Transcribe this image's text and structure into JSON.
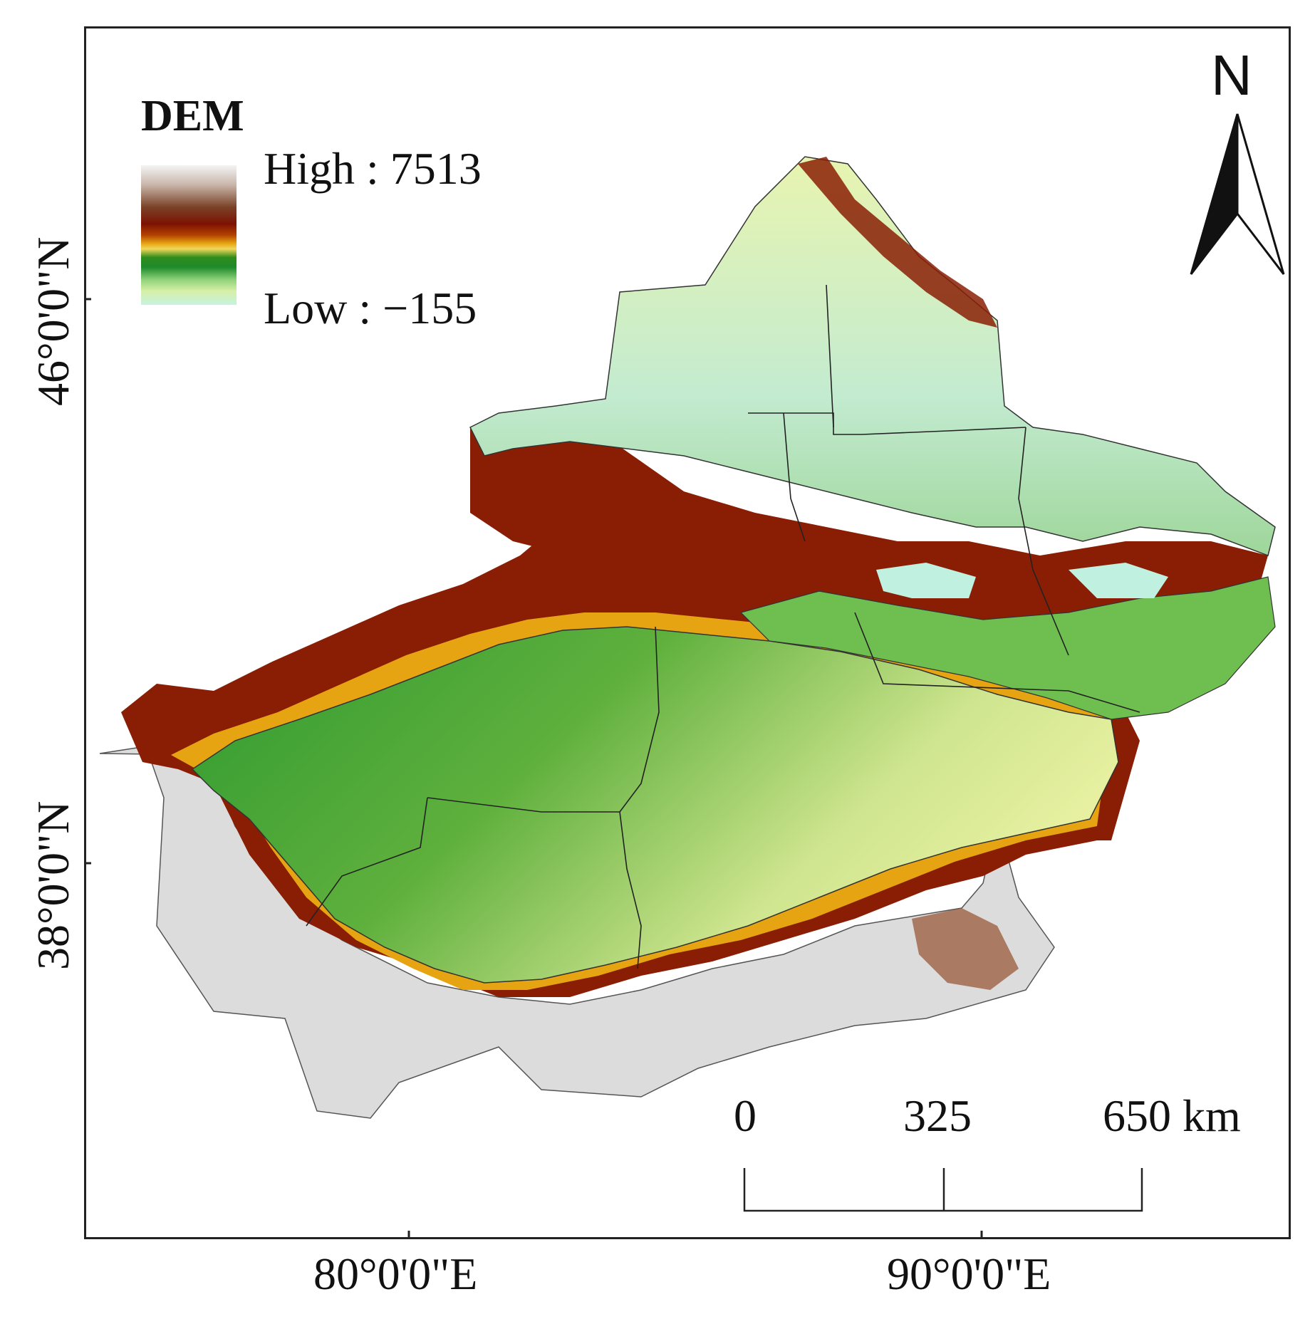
{
  "legend": {
    "title": "DEM",
    "high_label": "High : 7513",
    "low_label": "Low : −155",
    "high_value": 7513,
    "low_value": -155,
    "ramp_colors": [
      "#f4f4f4",
      "#7a4228",
      "#7c1202",
      "#e6a412",
      "#2f8c1c",
      "#d6f0a6",
      "#c6f2e0"
    ]
  },
  "axes": {
    "lat_labels": [
      "46°0'0\"N",
      "38°0'0\"N"
    ],
    "lon_labels": [
      "80°0'0\"E",
      "90°0'0\"E"
    ]
  },
  "scale_bar": {
    "labels": [
      "0",
      "325",
      "650 km"
    ],
    "values_km": [
      0,
      325,
      650
    ]
  },
  "north_arrow": {
    "letter": "N",
    "icon": "north-arrow-icon"
  },
  "colors": {
    "lowland": "#4aa83a",
    "basin": "#cfe79a",
    "mountain": "#8a1e05",
    "high_plateau": "#d9d9d9",
    "frame": "#222222"
  }
}
